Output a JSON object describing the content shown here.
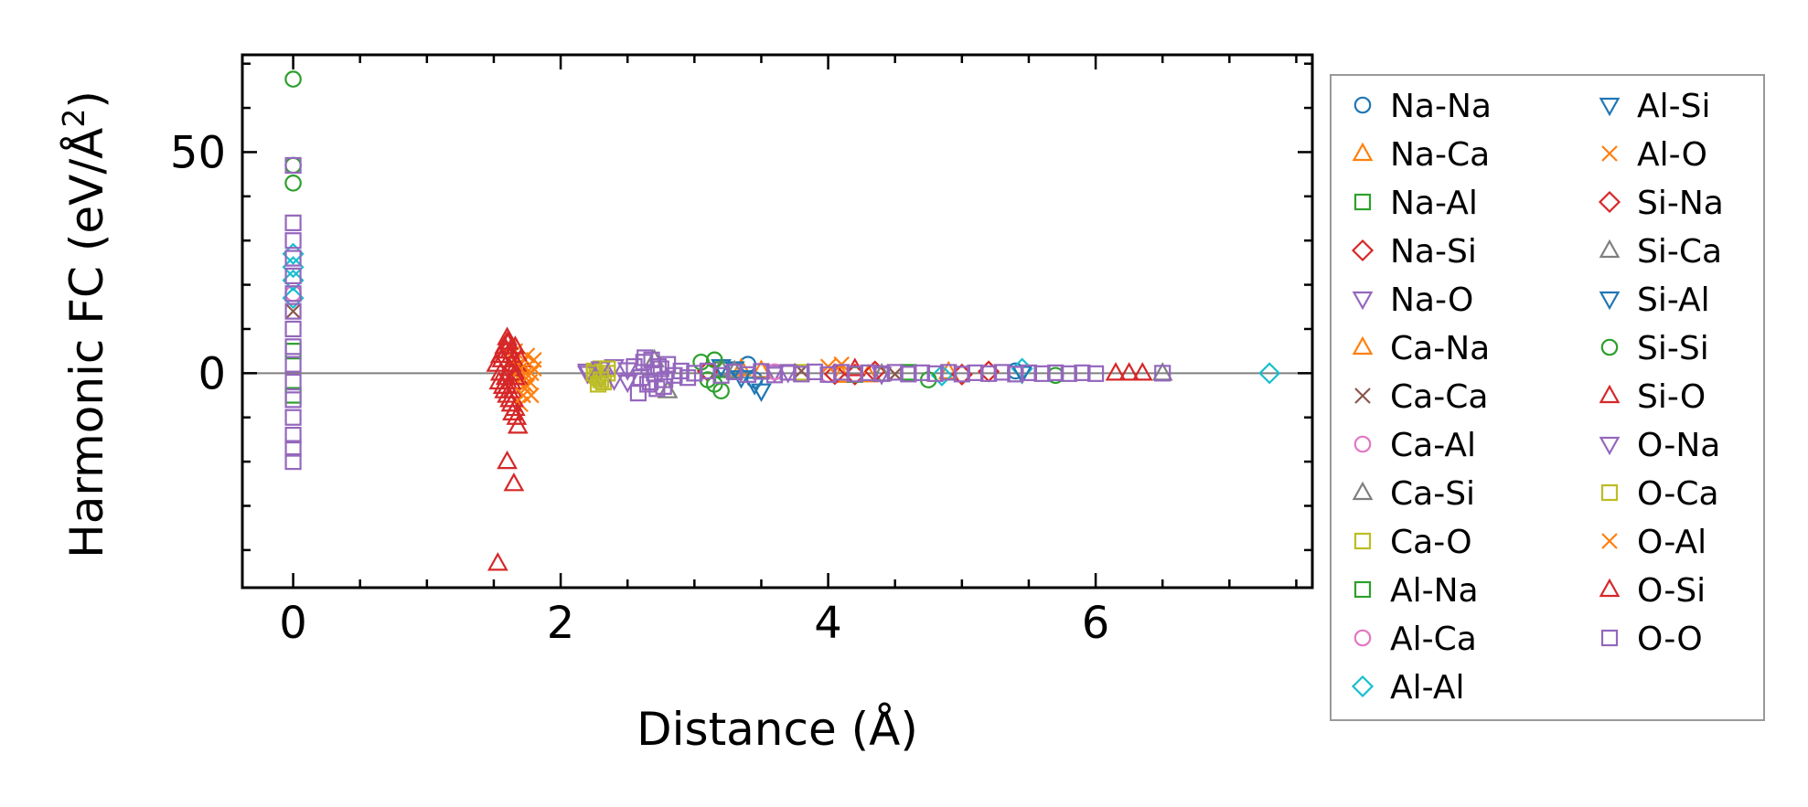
{
  "chart_data": {
    "type": "scatter",
    "title": "",
    "xlabel": "Distance (Å)",
    "ylabel": "Harmonic FC (eV/Å",
    "ylabel_sup": "2",
    "ylabel_close": ")",
    "xlim": [
      -0.38,
      7.62
    ],
    "ylim": [
      -48.5,
      72
    ],
    "xticks": [
      0,
      2,
      4,
      6
    ],
    "xtick_labels": [
      "0",
      "2",
      "4",
      "6"
    ],
    "yticks": [
      0,
      50
    ],
    "ytick_labels": [
      "0",
      "50"
    ],
    "x_minor_step": 0.5,
    "y_minor_step": 10,
    "zero_line": true,
    "legend_position": "outside-right",
    "series": [
      {
        "name": "Na-Na",
        "marker": "circle",
        "color": "#1f77b4",
        "x": [
          3.4,
          3.45,
          5.4
        ],
        "y": [
          2.0,
          -1.5,
          0.5
        ]
      },
      {
        "name": "Na-Ca",
        "marker": "triangle-up",
        "color": "#ff7f0e",
        "x": [
          3.35,
          4.1,
          4.9
        ],
        "y": [
          1.0,
          -0.5,
          0.3
        ]
      },
      {
        "name": "Na-Al",
        "marker": "square",
        "color": "#2ca02c",
        "x": [
          3.2,
          4.6
        ],
        "y": [
          0.8,
          0.2
        ]
      },
      {
        "name": "Na-Si",
        "marker": "diamond",
        "color": "#d62728",
        "x": [
          3.1,
          4.2,
          5.2
        ],
        "y": [
          0.5,
          -0.3,
          0.4
        ]
      },
      {
        "name": "Na-O",
        "marker": "triangle-down",
        "color": "#9467bd",
        "x": [
          2.2,
          2.3,
          2.4,
          2.5,
          3.6,
          4.4
        ],
        "y": [
          0.5,
          -1.0,
          1.5,
          -2.0,
          0.3,
          -0.2
        ]
      },
      {
        "name": "Ca-Na",
        "marker": "triangle-up",
        "color": "#ff7f0e",
        "x": [
          3.5,
          4.3
        ],
        "y": [
          0.6,
          -0.4
        ]
      },
      {
        "name": "Ca-Ca",
        "marker": "x",
        "color": "#8c564b",
        "x": [
          0.0,
          3.8,
          4.5
        ],
        "y": [
          14.0,
          0.5,
          -0.2
        ]
      },
      {
        "name": "Ca-Al",
        "marker": "circle",
        "color": "#e377c2",
        "x": [
          3.3,
          4.0
        ],
        "y": [
          0.4,
          -0.3
        ]
      },
      {
        "name": "Ca-Si",
        "marker": "triangle-up",
        "color": "#7f7f7f",
        "x": [
          2.7,
          2.8,
          3.2,
          6.5
        ],
        "y": [
          3.0,
          -4.0,
          1.0,
          0.0
        ]
      },
      {
        "name": "Ca-O",
        "marker": "square",
        "color": "#bcbd22",
        "x": [
          2.25,
          2.28,
          2.3,
          2.32,
          2.35,
          2.27,
          3.8
        ],
        "y": [
          0.5,
          -1.0,
          1.0,
          -2.0,
          0.0,
          -0.5,
          0.2
        ]
      },
      {
        "name": "Al-Na",
        "marker": "square",
        "color": "#2ca02c",
        "x": [
          0.0,
          0.0,
          3.3,
          4.2
        ],
        "y": [
          5.0,
          -5.0,
          0.5,
          -0.3
        ]
      },
      {
        "name": "Al-Ca",
        "marker": "circle",
        "color": "#e377c2",
        "x": [
          0.0,
          3.6
        ],
        "y": [
          18.0,
          0.3
        ]
      },
      {
        "name": "Al-Al",
        "marker": "diamond",
        "color": "#17becf",
        "x": [
          0.0,
          0.0,
          0.0,
          0.0,
          4.85,
          5.45,
          7.3
        ],
        "y": [
          27.0,
          24.0,
          21.0,
          17.0,
          -0.5,
          1.0,
          0.0
        ]
      },
      {
        "name": "Al-Si",
        "marker": "triangle-down",
        "color": "#1f77b4",
        "x": [
          3.3,
          3.45,
          3.5
        ],
        "y": [
          1.0,
          -2.5,
          -4.0
        ]
      },
      {
        "name": "Al-O",
        "marker": "x",
        "color": "#ff7f0e",
        "x": [
          1.62,
          1.65,
          1.68,
          1.7,
          1.72,
          1.75,
          1.78,
          1.8,
          1.7,
          1.74,
          1.77,
          1.66
        ],
        "y": [
          6.0,
          3.0,
          -1.0,
          2.0,
          -3.0,
          4.0,
          -5.0,
          1.0,
          -7.0,
          0.0,
          -2.0,
          5.0
        ]
      },
      {
        "name": "Si-Na",
        "marker": "diamond",
        "color": "#d62728",
        "x": [
          3.1,
          4.05,
          4.35,
          5.0
        ],
        "y": [
          0.5,
          -0.2,
          0.4,
          -0.3
        ]
      },
      {
        "name": "Si-Ca",
        "marker": "triangle-up",
        "color": "#7f7f7f",
        "x": [
          3.3,
          4.4
        ],
        "y": [
          0.5,
          -0.2
        ]
      },
      {
        "name": "Si-Al",
        "marker": "triangle-down",
        "color": "#1f77b4",
        "x": [
          3.2,
          3.35,
          5.45
        ],
        "y": [
          1.5,
          -1.0,
          0.0
        ]
      },
      {
        "name": "Si-Si",
        "marker": "circle",
        "color": "#2ca02c",
        "x": [
          0.0,
          0.0,
          0.0,
          3.05,
          3.1,
          3.15,
          3.2,
          3.15,
          4.75,
          5.7
        ],
        "y": [
          66.5,
          47.0,
          43.0,
          2.5,
          -1.5,
          3.0,
          -4.0,
          -2.5,
          -1.5,
          -0.5
        ]
      },
      {
        "name": "Si-O",
        "marker": "triangle-up",
        "color": "#d62728",
        "x": [
          1.52,
          1.55,
          1.58,
          1.6,
          1.62,
          1.63,
          1.64,
          1.65,
          1.66,
          1.67,
          1.68,
          1.7,
          1.6,
          1.65,
          1.62,
          1.68,
          1.57,
          1.6,
          1.63,
          1.66,
          1.56,
          1.59,
          1.61,
          1.64,
          1.67,
          1.54,
          1.58,
          1.62,
          1.66,
          1.55,
          1.59,
          1.63,
          1.53,
          1.6,
          6.15,
          6.25,
          6.35
        ],
        "y": [
          2.0,
          4.0,
          6.0,
          7.0,
          5.0,
          -2.0,
          -4.0,
          -6.0,
          -8.0,
          -10.0,
          -12.0,
          3.0,
          -20.0,
          -25.0,
          1.0,
          -1.0,
          -3.0,
          -5.0,
          -7.0,
          0.0,
          3.0,
          5.0,
          7.0,
          -9.0,
          2.0,
          -2.0,
          -4.0,
          -6.0,
          6.0,
          0.0,
          -1.0,
          4.0,
          -43.0,
          8.0,
          0.0,
          0.0,
          0.0
        ]
      },
      {
        "name": "O-Na",
        "marker": "triangle-down",
        "color": "#9467bd",
        "x": [
          2.2,
          2.3,
          2.4,
          2.5,
          3.7
        ],
        "y": [
          0.0,
          1.0,
          -1.5,
          0.8,
          0.2
        ]
      },
      {
        "name": "O-Ca",
        "marker": "square",
        "color": "#bcbd22",
        "x": [
          2.25,
          2.3,
          2.35,
          2.28
        ],
        "y": [
          0.0,
          -1.5,
          1.0,
          -2.5
        ]
      },
      {
        "name": "O-Al",
        "marker": "x",
        "color": "#ff7f0e",
        "x": [
          1.7,
          1.75,
          1.8,
          1.72,
          1.78,
          4.0,
          4.1
        ],
        "y": [
          1.0,
          -3.0,
          3.0,
          -5.0,
          0.0,
          1.5,
          2.0
        ]
      },
      {
        "name": "O-Si",
        "marker": "triangle-up",
        "color": "#d62728",
        "x": [
          1.6,
          1.63,
          1.66,
          4.2
        ],
        "y": [
          -3.0,
          2.0,
          -1.0,
          1.0
        ]
      },
      {
        "name": "O-O",
        "marker": "square",
        "color": "#9467bd",
        "x": [
          0.0,
          0.0,
          0.0,
          0.0,
          0.0,
          0.0,
          0.0,
          0.0,
          0.0,
          0.0,
          0.0,
          0.0,
          0.0,
          0.0,
          0.0,
          0.0,
          2.55,
          2.6,
          2.62,
          2.65,
          2.68,
          2.7,
          2.72,
          2.75,
          2.78,
          2.8,
          2.85,
          2.9,
          2.95,
          2.58,
          2.63,
          2.67,
          2.73,
          2.77,
          3.0,
          3.1,
          3.2,
          3.3,
          3.4,
          3.5,
          3.6,
          3.7,
          3.8,
          3.9,
          4.0,
          4.1,
          4.2,
          4.3,
          4.4,
          4.5,
          4.6,
          4.7,
          4.8,
          4.9,
          5.0,
          5.1,
          5.2,
          5.3,
          5.4,
          5.5,
          5.6,
          5.7,
          5.8,
          5.9,
          6.0,
          6.5
        ],
        "y": [
          47.0,
          34.0,
          30.0,
          26.0,
          22.0,
          18.0,
          14.0,
          10.0,
          6.0,
          2.0,
          -2.0,
          -6.0,
          -10.0,
          -14.0,
          -17.0,
          -20.0,
          1.5,
          -1.0,
          2.5,
          -2.5,
          3.0,
          0.0,
          -3.5,
          1.0,
          -1.5,
          2.0,
          -0.5,
          0.5,
          -1.0,
          -4.5,
          3.5,
          -2.0,
          1.5,
          -3.0,
          0.0,
          0.5,
          -0.5,
          0.3,
          -0.3,
          0.4,
          -0.4,
          0.2,
          -0.2,
          0.3,
          -0.3,
          0.2,
          -0.2,
          0.1,
          -0.1,
          0.2,
          -0.2,
          0.1,
          -0.1,
          0.2,
          -0.2,
          0.1,
          -0.1,
          0.2,
          -0.2,
          0.1,
          -0.1,
          0.1,
          -0.1,
          0.1,
          -0.1,
          0.0
        ]
      }
    ]
  }
}
